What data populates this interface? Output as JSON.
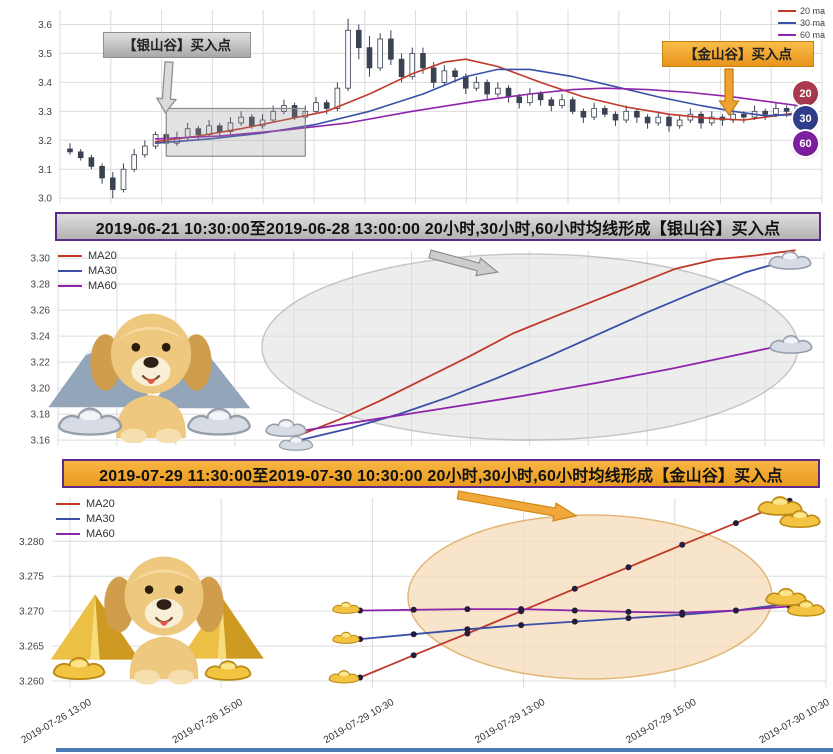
{
  "colors": {
    "ma20": "#c0392b",
    "ma30": "#3a4fa8",
    "ma60": "#8e24aa",
    "grid": "#dcdcdc",
    "candle": "#3b4252"
  },
  "top_chart": {
    "legend": [
      "20 ma",
      "30 ma",
      "60 ma"
    ],
    "badges": [
      "20",
      "30",
      "60"
    ],
    "badge_colors": [
      "#a93a4e",
      "#2f3d8a",
      "#7d1fa0"
    ],
    "silver_callout": "【银山谷】买入点",
    "gold_callout": "【金山谷】买入点"
  },
  "banners": {
    "silver": "2019-06-21 10:30:00至2019-06-28 13:00:00 20小时,30小时,60小时均线形成【银山谷】买入点",
    "gold": "2019-07-29 11:30:00至2019-07-30 10:30:00 20小时,30小时,60小时均线形成【金山谷】买入点"
  },
  "mid_chart": {
    "legend": [
      "MA20",
      "MA30",
      "MA60"
    ]
  },
  "bottom_chart": {
    "legend": [
      "MA20",
      "MA30",
      "MA60"
    ]
  },
  "chart_data": [
    {
      "type": "candlestick",
      "title": "",
      "ylim": [
        2.98,
        3.65
      ],
      "yticks": [
        3.0,
        3.1,
        3.2,
        3.3,
        3.4,
        3.5,
        3.6
      ],
      "candles": [
        [
          3.17,
          3.19,
          3.15,
          3.16
        ],
        [
          3.16,
          3.17,
          3.13,
          3.14
        ],
        [
          3.14,
          3.15,
          3.1,
          3.11
        ],
        [
          3.11,
          3.12,
          3.05,
          3.07
        ],
        [
          3.07,
          3.09,
          3.0,
          3.03
        ],
        [
          3.03,
          3.12,
          3.02,
          3.1
        ],
        [
          3.1,
          3.17,
          3.09,
          3.15
        ],
        [
          3.15,
          3.2,
          3.14,
          3.18
        ],
        [
          3.18,
          3.23,
          3.17,
          3.22
        ],
        [
          3.22,
          3.23,
          3.18,
          3.19
        ],
        [
          3.19,
          3.23,
          3.18,
          3.21
        ],
        [
          3.21,
          3.26,
          3.2,
          3.24
        ],
        [
          3.24,
          3.25,
          3.2,
          3.22
        ],
        [
          3.22,
          3.27,
          3.21,
          3.25
        ],
        [
          3.25,
          3.26,
          3.21,
          3.23
        ],
        [
          3.23,
          3.28,
          3.22,
          3.26
        ],
        [
          3.26,
          3.3,
          3.25,
          3.28
        ],
        [
          3.28,
          3.29,
          3.24,
          3.25
        ],
        [
          3.25,
          3.29,
          3.24,
          3.27
        ],
        [
          3.27,
          3.32,
          3.26,
          3.3
        ],
        [
          3.3,
          3.34,
          3.29,
          3.32
        ],
        [
          3.32,
          3.33,
          3.27,
          3.28
        ],
        [
          3.28,
          3.32,
          3.27,
          3.3
        ],
        [
          3.3,
          3.35,
          3.29,
          3.33
        ],
        [
          3.33,
          3.34,
          3.29,
          3.31
        ],
        [
          3.31,
          3.4,
          3.3,
          3.38
        ],
        [
          3.38,
          3.62,
          3.37,
          3.58
        ],
        [
          3.58,
          3.6,
          3.48,
          3.52
        ],
        [
          3.52,
          3.56,
          3.42,
          3.45
        ],
        [
          3.45,
          3.57,
          3.44,
          3.55
        ],
        [
          3.55,
          3.58,
          3.46,
          3.48
        ],
        [
          3.48,
          3.5,
          3.4,
          3.42
        ],
        [
          3.42,
          3.52,
          3.41,
          3.5
        ],
        [
          3.5,
          3.52,
          3.43,
          3.45
        ],
        [
          3.45,
          3.47,
          3.38,
          3.4
        ],
        [
          3.4,
          3.46,
          3.39,
          3.44
        ],
        [
          3.44,
          3.45,
          3.4,
          3.42
        ],
        [
          3.42,
          3.43,
          3.36,
          3.38
        ],
        [
          3.38,
          3.42,
          3.37,
          3.4
        ],
        [
          3.4,
          3.41,
          3.34,
          3.36
        ],
        [
          3.36,
          3.4,
          3.35,
          3.38
        ],
        [
          3.38,
          3.39,
          3.33,
          3.35
        ],
        [
          3.35,
          3.36,
          3.31,
          3.33
        ],
        [
          3.33,
          3.38,
          3.32,
          3.36
        ],
        [
          3.36,
          3.37,
          3.32,
          3.34
        ],
        [
          3.34,
          3.35,
          3.3,
          3.32
        ],
        [
          3.32,
          3.36,
          3.31,
          3.34
        ],
        [
          3.34,
          3.35,
          3.29,
          3.3
        ],
        [
          3.3,
          3.31,
          3.26,
          3.28
        ],
        [
          3.28,
          3.33,
          3.27,
          3.31
        ],
        [
          3.31,
          3.32,
          3.28,
          3.29
        ],
        [
          3.29,
          3.3,
          3.25,
          3.27
        ],
        [
          3.27,
          3.32,
          3.26,
          3.3
        ],
        [
          3.3,
          3.31,
          3.26,
          3.28
        ],
        [
          3.28,
          3.29,
          3.24,
          3.26
        ],
        [
          3.26,
          3.3,
          3.25,
          3.28
        ],
        [
          3.28,
          3.29,
          3.23,
          3.25
        ],
        [
          3.25,
          3.29,
          3.24,
          3.27
        ],
        [
          3.27,
          3.31,
          3.26,
          3.29
        ],
        [
          3.29,
          3.3,
          3.24,
          3.26
        ],
        [
          3.26,
          3.3,
          3.25,
          3.28
        ],
        [
          3.28,
          3.29,
          3.25,
          3.27
        ],
        [
          3.27,
          3.31,
          3.26,
          3.29
        ],
        [
          3.29,
          3.3,
          3.26,
          3.28
        ],
        [
          3.28,
          3.32,
          3.27,
          3.3
        ],
        [
          3.3,
          3.31,
          3.27,
          3.29
        ],
        [
          3.29,
          3.33,
          3.28,
          3.31
        ],
        [
          3.31,
          3.32,
          3.28,
          3.3
        ],
        [
          3.3,
          3.34,
          3.29,
          3.32
        ],
        [
          3.32,
          3.33,
          3.29,
          3.31
        ]
      ],
      "ma_series": [
        {
          "name": "20 ma",
          "color_key": "ma20",
          "points": [
            [
              8,
              3.195
            ],
            [
              12,
              3.215
            ],
            [
              16,
              3.24
            ],
            [
              20,
              3.27
            ],
            [
              24,
              3.3
            ],
            [
              28,
              3.36
            ],
            [
              32,
              3.43
            ],
            [
              35,
              3.47
            ],
            [
              37,
              3.48
            ],
            [
              40,
              3.455
            ],
            [
              44,
              3.4
            ],
            [
              48,
              3.35
            ],
            [
              52,
              3.315
            ],
            [
              56,
              3.29
            ],
            [
              60,
              3.275
            ],
            [
              63,
              3.27
            ],
            [
              66,
              3.285
            ],
            [
              69,
              3.3
            ]
          ]
        },
        {
          "name": "30 ma",
          "color_key": "ma30",
          "points": [
            [
              8,
              3.19
            ],
            [
              13,
              3.205
            ],
            [
              18,
              3.225
            ],
            [
              23,
              3.255
            ],
            [
              28,
              3.3
            ],
            [
              33,
              3.36
            ],
            [
              37,
              3.42
            ],
            [
              40,
              3.445
            ],
            [
              43,
              3.445
            ],
            [
              47,
              3.42
            ],
            [
              51,
              3.385
            ],
            [
              55,
              3.35
            ],
            [
              59,
              3.32
            ],
            [
              62,
              3.3
            ],
            [
              65,
              3.285
            ],
            [
              69,
              3.29
            ]
          ]
        },
        {
          "name": "60 ma",
          "color_key": "ma60",
          "points": [
            [
              8,
              3.205
            ],
            [
              14,
              3.215
            ],
            [
              20,
              3.235
            ],
            [
              26,
              3.26
            ],
            [
              32,
              3.3
            ],
            [
              38,
              3.335
            ],
            [
              43,
              3.36
            ],
            [
              47,
              3.375
            ],
            [
              50,
              3.38
            ],
            [
              54,
              3.375
            ],
            [
              58,
              3.365
            ],
            [
              62,
              3.35
            ],
            [
              65,
              3.335
            ],
            [
              69,
              3.315
            ]
          ]
        }
      ],
      "highlight_box": {
        "i0": 9,
        "i1": 22,
        "v0": 3.145,
        "v1": 3.31
      }
    },
    {
      "type": "line",
      "ylim": [
        3.1555,
        3.3055
      ],
      "yticks": [
        3.16,
        3.18,
        3.2,
        3.22,
        3.24,
        3.26,
        3.28,
        3.3
      ],
      "ytick_decimals": 2,
      "x_extent": [
        0.316,
        0.962
      ],
      "series": [
        {
          "name": "MA20",
          "color_key": "ma20",
          "t": [
            0,
            0.08,
            0.16,
            0.25,
            0.34,
            0.43,
            0.52,
            0.6,
            0.68,
            0.76,
            0.84,
            0.92,
            1
          ],
          "v": [
            3.164,
            3.176,
            3.19,
            3.207,
            3.224,
            3.242,
            3.256,
            3.268,
            3.28,
            3.292,
            3.299,
            3.302,
            3.306
          ]
        },
        {
          "name": "MA30",
          "color_key": "ma30",
          "t": [
            0,
            0.1,
            0.2,
            0.3,
            0.4,
            0.5,
            0.6,
            0.7,
            0.8,
            0.9,
            1
          ],
          "v": [
            3.16,
            3.169,
            3.18,
            3.193,
            3.208,
            3.224,
            3.241,
            3.258,
            3.274,
            3.289,
            3.3
          ]
        },
        {
          "name": "MA60",
          "color_key": "ma60",
          "t": [
            0,
            0.15,
            0.3,
            0.45,
            0.6,
            0.75,
            0.9,
            1
          ],
          "v": [
            3.167,
            3.176,
            3.185,
            3.194,
            3.204,
            3.215,
            3.227,
            3.235
          ]
        }
      ]
    },
    {
      "type": "line",
      "markers": true,
      "ylim": [
        3.259,
        3.2862
      ],
      "yticks": [
        3.26,
        3.265,
        3.27,
        3.275,
        3.28
      ],
      "ytick_decimals": 3,
      "xtick_labels": [
        "2019-07-26 13:00",
        "2019-07-26 15:00",
        "2019-07-29 10:30",
        "2019-07-29 13:00",
        "2019-07-29 15:00",
        "2019-07-30 10:30"
      ],
      "x_extent": [
        0.398,
        0.953
      ],
      "series": [
        {
          "name": "MA20",
          "color_key": "ma20",
          "v": [
            3.2605,
            3.2637,
            3.2668,
            3.27,
            3.2732,
            3.2763,
            3.2795,
            3.2826,
            3.2858
          ]
        },
        {
          "name": "MA30",
          "color_key": "ma30",
          "v": [
            3.266,
            3.2667,
            3.2674,
            3.268,
            3.2685,
            3.269,
            3.2695,
            3.2701,
            3.2711
          ]
        },
        {
          "name": "MA60",
          "color_key": "ma60",
          "v": [
            3.2701,
            3.2702,
            3.2703,
            3.2703,
            3.2701,
            3.2699,
            3.2698,
            3.2701,
            3.2707
          ]
        }
      ]
    }
  ]
}
